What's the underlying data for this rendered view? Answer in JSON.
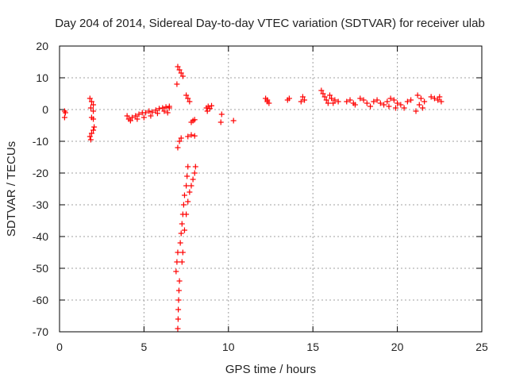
{
  "chart_data": {
    "type": "scatter",
    "title": "Day 204 of 2014, Sidereal Day-to-day VTEC variation (SDTVAR) for receiver ulab",
    "xlabel": "GPS time / hours",
    "ylabel": "SDTVAR / TECUs",
    "xlim": [
      0,
      25
    ],
    "ylim": [
      -70,
      20
    ],
    "xticks": [
      0,
      5,
      10,
      15,
      20,
      25
    ],
    "yticks": [
      20,
      10,
      0,
      -10,
      -20,
      -30,
      -40,
      -50,
      -60,
      -70
    ],
    "grid": true,
    "marker": "+",
    "color": "#ff0000",
    "series": [
      {
        "name": "ulab",
        "points": [
          [
            0.3,
            -0.5
          ],
          [
            0.35,
            -1.0
          ],
          [
            0.3,
            -2.5
          ],
          [
            1.8,
            3.5
          ],
          [
            1.9,
            2.5
          ],
          [
            2.0,
            1.5
          ],
          [
            1.85,
            0.5
          ],
          [
            2.0,
            -0.5
          ],
          [
            1.9,
            -2.5
          ],
          [
            2.0,
            -3.0
          ],
          [
            1.8,
            -8.5
          ],
          [
            1.9,
            -7.5
          ],
          [
            2.0,
            -6.5
          ],
          [
            2.05,
            -5.5
          ],
          [
            1.85,
            -9.5
          ],
          [
            4.0,
            -2.0
          ],
          [
            4.1,
            -3.0
          ],
          [
            4.3,
            -2.5
          ],
          [
            4.5,
            -2.0
          ],
          [
            4.7,
            -1.5
          ],
          [
            4.9,
            -1.0
          ],
          [
            5.1,
            -1.0
          ],
          [
            5.3,
            -0.5
          ],
          [
            5.5,
            -0.8
          ],
          [
            5.7,
            -0.2
          ],
          [
            5.9,
            0.3
          ],
          [
            6.1,
            0.5
          ],
          [
            6.3,
            0.8
          ],
          [
            4.2,
            -3.5
          ],
          [
            4.6,
            -3.0
          ],
          [
            5.0,
            -2.5
          ],
          [
            5.4,
            -2.0
          ],
          [
            5.8,
            -1.2
          ],
          [
            6.2,
            -0.5
          ],
          [
            6.5,
            0.5
          ],
          [
            6.4,
            -1.0
          ],
          [
            6.5,
            1.0
          ],
          [
            7.0,
            13.5
          ],
          [
            7.1,
            12.5
          ],
          [
            7.2,
            11.5
          ],
          [
            7.3,
            10.5
          ],
          [
            6.95,
            8.0
          ],
          [
            7.5,
            4.5
          ],
          [
            7.6,
            3.5
          ],
          [
            7.7,
            2.5
          ],
          [
            7.0,
            -69.0
          ],
          [
            7.02,
            -66.0
          ],
          [
            7.03,
            -63.0
          ],
          [
            7.05,
            -60.0
          ],
          [
            7.07,
            -57.0
          ],
          [
            7.1,
            -54.0
          ],
          [
            6.9,
            -51.0
          ],
          [
            6.95,
            -48.0
          ],
          [
            7.0,
            -45.0
          ],
          [
            7.15,
            -42.0
          ],
          [
            7.2,
            -39.0
          ],
          [
            7.25,
            -36.0
          ],
          [
            7.3,
            -33.0
          ],
          [
            7.35,
            -30.0
          ],
          [
            7.4,
            -27.0
          ],
          [
            7.5,
            -24.0
          ],
          [
            7.55,
            -21.0
          ],
          [
            7.6,
            -18.0
          ],
          [
            7.25,
            -48.0
          ],
          [
            7.3,
            -45.0
          ],
          [
            7.4,
            -38.0
          ],
          [
            7.5,
            -33.0
          ],
          [
            7.6,
            -29.0
          ],
          [
            7.7,
            -26.0
          ],
          [
            7.8,
            -24.0
          ],
          [
            7.9,
            -22.0
          ],
          [
            8.0,
            -20.0
          ],
          [
            8.05,
            -18.0
          ],
          [
            7.0,
            -12.0
          ],
          [
            7.1,
            -10.0
          ],
          [
            7.2,
            -9.0
          ],
          [
            7.6,
            -8.5
          ],
          [
            7.8,
            -8.0
          ],
          [
            8.0,
            -8.3
          ],
          [
            7.8,
            -4.0
          ],
          [
            7.9,
            -3.5
          ],
          [
            8.0,
            -3.2
          ],
          [
            8.7,
            0.5
          ],
          [
            8.8,
            1.0
          ],
          [
            8.9,
            0.3
          ],
          [
            9.0,
            1.2
          ],
          [
            8.75,
            -0.5
          ],
          [
            9.6,
            -1.5
          ],
          [
            9.55,
            -4.0
          ],
          [
            10.3,
            -3.5
          ],
          [
            12.2,
            3.5
          ],
          [
            12.3,
            2.5
          ],
          [
            12.4,
            2.0
          ],
          [
            12.3,
            3.0
          ],
          [
            13.5,
            3.0
          ],
          [
            13.6,
            3.5
          ],
          [
            14.3,
            2.5
          ],
          [
            14.4,
            4.0
          ],
          [
            14.5,
            3.0
          ],
          [
            15.5,
            6.0
          ],
          [
            15.6,
            5.0
          ],
          [
            15.7,
            4.0
          ],
          [
            15.8,
            3.0
          ],
          [
            15.9,
            2.0
          ],
          [
            16.0,
            4.5
          ],
          [
            16.1,
            3.5
          ],
          [
            16.2,
            2.0
          ],
          [
            16.3,
            3.0
          ],
          [
            16.5,
            2.5
          ],
          [
            17.0,
            2.5
          ],
          [
            17.2,
            3.0
          ],
          [
            17.4,
            2.0
          ],
          [
            17.5,
            1.5
          ],
          [
            17.8,
            3.5
          ],
          [
            18.0,
            3.0
          ],
          [
            18.2,
            2.0
          ],
          [
            18.4,
            1.0
          ],
          [
            18.6,
            2.5
          ],
          [
            18.8,
            3.0
          ],
          [
            19.0,
            2.0
          ],
          [
            19.2,
            1.5
          ],
          [
            19.4,
            2.5
          ],
          [
            19.6,
            3.5
          ],
          [
            19.8,
            3.0
          ],
          [
            20.0,
            2.0
          ],
          [
            20.2,
            1.5
          ],
          [
            20.4,
            0.5
          ],
          [
            20.6,
            2.5
          ],
          [
            20.8,
            3.0
          ],
          [
            19.5,
            1.0
          ],
          [
            19.9,
            0.5
          ],
          [
            21.2,
            4.5
          ],
          [
            21.4,
            3.5
          ],
          [
            21.6,
            2.5
          ],
          [
            21.3,
            1.5
          ],
          [
            21.5,
            0.5
          ],
          [
            21.1,
            -0.5
          ],
          [
            22.0,
            4.0
          ],
          [
            22.2,
            3.5
          ],
          [
            22.4,
            3.0
          ],
          [
            22.6,
            2.5
          ],
          [
            22.5,
            4.0
          ]
        ]
      }
    ]
  }
}
